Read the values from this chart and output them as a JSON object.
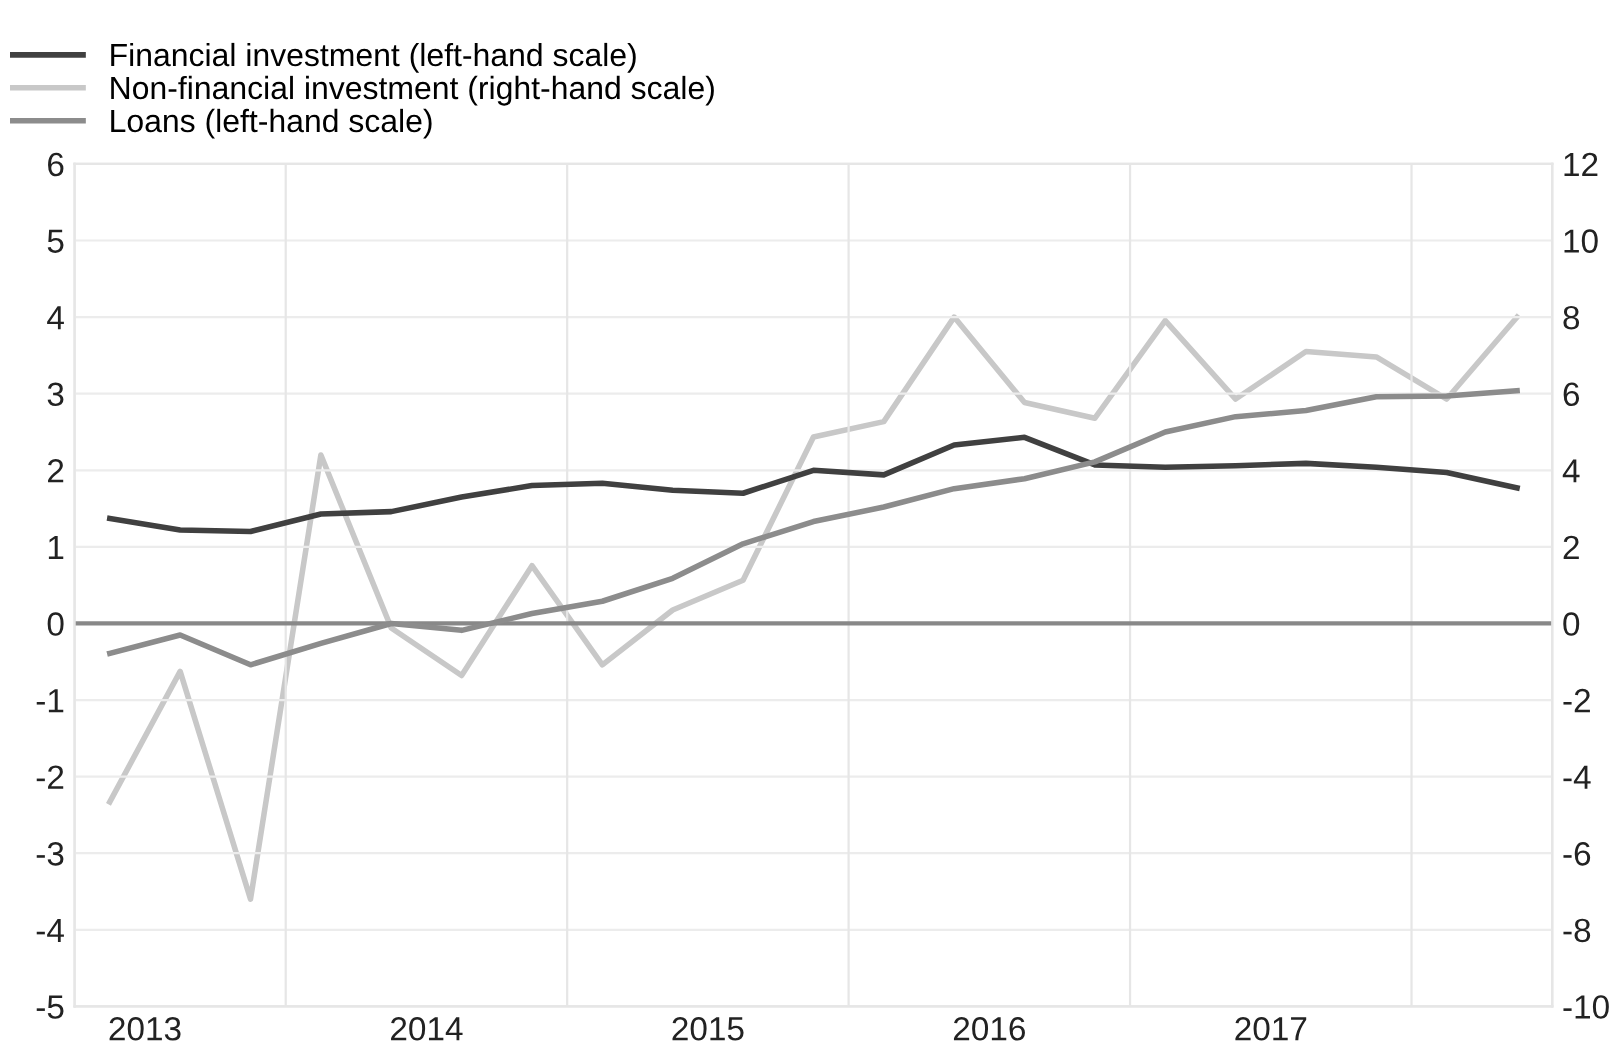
{
  "chart_data": {
    "type": "line",
    "x": [
      2013.375,
      2013.625,
      2013.875,
      2014.125,
      2014.375,
      2014.625,
      2014.875,
      2015.125,
      2015.375,
      2015.625,
      2015.875,
      2016.125,
      2016.375,
      2016.625,
      2016.875,
      2017.125,
      2017.375,
      2017.625,
      2017.875,
      2018.125,
      2018.375
    ],
    "series": [
      {
        "name": "Financial investment (left-hand scale)",
        "color": "#404040",
        "values": [
          1.37,
          1.22,
          1.2,
          1.43,
          1.46,
          1.65,
          1.8,
          1.83,
          1.74,
          1.7,
          2.0,
          1.94,
          2.33,
          2.43,
          2.07,
          2.04,
          2.06,
          2.09,
          2.04,
          1.97,
          1.77
        ]
      },
      {
        "name": "Non-financial investment (right-hand scale)",
        "color": "#c8c8c8",
        "axis": "y2",
        "values": [
          -4.66,
          -1.25,
          -7.2,
          4.4,
          -0.12,
          -1.36,
          1.51,
          -1.08,
          0.35,
          1.13,
          4.87,
          5.27,
          8.0,
          5.77,
          5.36,
          7.91,
          5.86,
          7.1,
          6.96,
          5.86,
          8.0
        ]
      },
      {
        "name": "Loans (left-hand scale)",
        "color": "#8c8c8c",
        "values": [
          -0.39,
          -0.15,
          -0.54,
          -0.26,
          0.0,
          -0.09,
          0.13,
          0.29,
          0.59,
          1.04,
          1.33,
          1.52,
          1.76,
          1.89,
          2.11,
          2.5,
          2.7,
          2.78,
          2.96,
          2.97,
          3.04
        ]
      }
    ],
    "xlim": [
      2013.25,
      2018.5
    ],
    "xticks": [
      {
        "value": 2013.5,
        "label": "2013"
      },
      {
        "value": 2014,
        "label": null
      },
      {
        "value": 2014.5,
        "label": "2014"
      },
      {
        "value": 2015,
        "label": null
      },
      {
        "value": 2015.5,
        "label": "2015"
      },
      {
        "value": 2016,
        "label": null
      },
      {
        "value": 2016.5,
        "label": "2016"
      },
      {
        "value": 2017,
        "label": null
      },
      {
        "value": 2017.5,
        "label": "2017"
      },
      {
        "value": 2018,
        "label": null
      }
    ],
    "ylim": [
      -5,
      6
    ],
    "yticks": [
      -5,
      -4,
      -3,
      -2,
      -1,
      0,
      1,
      2,
      3,
      4,
      5,
      6
    ],
    "y2lim": [
      -10,
      12
    ],
    "y2ticks": [
      -10,
      -8,
      -6,
      -4,
      -2,
      0,
      2,
      4,
      6,
      8,
      10,
      12
    ],
    "ref_lines": [
      {
        "axis": "y",
        "value": 0,
        "color": "#888888"
      }
    ],
    "grid": true,
    "legend": "top left",
    "marker": "none",
    "line_style": "solid"
  }
}
